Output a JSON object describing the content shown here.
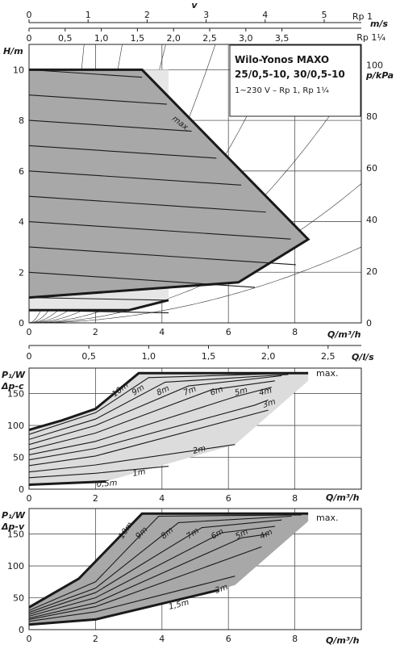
{
  "chart_data": [
    {
      "type": "line",
      "title": "Wilo-Yonos MAXO",
      "subtitle": "25/0,5-10, 30/0,5-10",
      "note": "1~230 V – Rp 1, Rp 1¼",
      "xlabel": "Q/m³/h",
      "ylabel": "H/m",
      "y2label": "p/kPa",
      "xlim": [
        0,
        10
      ],
      "ylim": [
        0,
        11
      ],
      "xticks": [
        "0",
        "2",
        "4",
        "6",
        "8"
      ],
      "yticks": [
        "0",
        "2",
        "4",
        "6",
        "8",
        "10"
      ],
      "y2ticks": [
        "0",
        "20",
        "40",
        "60",
        "80",
        "100"
      ],
      "top_axis_label": "v",
      "top_axis_unit": "m/s",
      "top_axis1_label": "Rp 1",
      "top_axis1_ticks": [
        "0",
        "1",
        "2",
        "3",
        "4",
        "5"
      ],
      "top_axis2_label": "Rp 1¼",
      "top_axis2_ticks": [
        "0",
        "0,5",
        "1,0",
        "1,5",
        "2,0",
        "2,5",
        "3,0",
        "3,5"
      ],
      "annotation": "max.",
      "grid": true,
      "envelope_max": {
        "x": [
          0,
          3.4,
          8.4,
          6.3,
          0
        ],
        "y": [
          10,
          10,
          3.3,
          1.6,
          1.0
        ]
      },
      "range_min_minus": {
        "x": [
          0,
          4.2,
          4.2,
          3.0,
          0
        ],
        "y": [
          10,
          10,
          0.9,
          0.5,
          0.5
        ]
      },
      "head_levels": [
        10,
        9,
        8,
        7,
        6,
        5,
        4,
        3,
        2,
        1,
        0.5
      ]
    },
    {
      "type": "line",
      "title": "Δp-c",
      "ylabel": "P₁/W",
      "xlabel": "Q/m³/h",
      "top_axis_label": "Q/l/s",
      "top_axis_ticks": [
        "0",
        "0,5",
        "1,0",
        "1,5",
        "2,0",
        "2,5"
      ],
      "xlim": [
        0,
        10
      ],
      "ylim": [
        0,
        190
      ],
      "xticks": [
        "0",
        "2",
        "4",
        "6",
        "8"
      ],
      "yticks": [
        "0",
        "50",
        "100",
        "150"
      ],
      "annotation": "max.",
      "series": [
        {
          "name": "10m",
          "x": [
            0,
            1,
            2,
            3.3,
            8.4
          ],
          "y": [
            93,
            108,
            126,
            182,
            182
          ]
        },
        {
          "name": "9m",
          "x": [
            0,
            2,
            3.6,
            8
          ],
          "y": [
            86,
            120,
            175,
            182
          ]
        },
        {
          "name": "8m",
          "x": [
            0,
            2,
            4.1,
            7.8
          ],
          "y": [
            78,
            110,
            168,
            180
          ]
        },
        {
          "name": "7m",
          "x": [
            0,
            2,
            4.8,
            7.6
          ],
          "y": [
            70,
            100,
            162,
            178
          ]
        },
        {
          "name": "6m",
          "x": [
            0,
            2,
            5.5,
            7.4
          ],
          "y": [
            62,
            88,
            156,
            170
          ]
        },
        {
          "name": "5m",
          "x": [
            0,
            2,
            6.2,
            7.3
          ],
          "y": [
            54,
            75,
            145,
            160
          ]
        },
        {
          "name": "4m",
          "x": [
            0,
            2,
            6.8,
            7.2
          ],
          "y": [
            46,
            64,
            132,
            140
          ]
        },
        {
          "name": "3m",
          "x": [
            0,
            2,
            7.2
          ],
          "y": [
            37,
            52,
            124
          ]
        },
        {
          "name": "2m",
          "x": [
            0,
            2,
            6.2
          ],
          "y": [
            27,
            38,
            70
          ]
        },
        {
          "name": "1m",
          "x": [
            0,
            2,
            4.2
          ],
          "y": [
            18,
            25,
            36
          ]
        },
        {
          "name": "0,5m",
          "x": [
            0,
            2.3
          ],
          "y": [
            7,
            12
          ]
        }
      ]
    },
    {
      "type": "line",
      "title": "Δp-v",
      "ylabel": "P₁/W",
      "xlabel": "Q/m³/h",
      "xlim": [
        0,
        10
      ],
      "ylim": [
        0,
        190
      ],
      "xticks": [
        "0",
        "2",
        "4",
        "6",
        "8"
      ],
      "yticks": [
        "0",
        "50",
        "100",
        "150"
      ],
      "annotation": "max.",
      "series": [
        {
          "name": "10m",
          "x": [
            0,
            1.5,
            3.4,
            8.4
          ],
          "y": [
            35,
            80,
            182,
            182
          ]
        },
        {
          "name": "9m",
          "x": [
            0,
            2,
            3.9,
            8.2
          ],
          "y": [
            30,
            75,
            178,
            180
          ]
        },
        {
          "name": "8m",
          "x": [
            0,
            2,
            4.5,
            7.9
          ],
          "y": [
            27,
            65,
            168,
            178
          ]
        },
        {
          "name": "7m",
          "x": [
            0,
            2,
            5.2,
            7.6
          ],
          "y": [
            24,
            58,
            160,
            172
          ]
        },
        {
          "name": "6m",
          "x": [
            0,
            2,
            5.8,
            7.4
          ],
          "y": [
            21,
            50,
            152,
            162
          ]
        },
        {
          "name": "5m",
          "x": [
            0,
            2,
            6.4,
            7.2
          ],
          "y": [
            18,
            42,
            144,
            150
          ]
        },
        {
          "name": "4m",
          "x": [
            0,
            2,
            7
          ],
          "y": [
            16,
            36,
            130
          ]
        },
        {
          "name": "3m",
          "x": [
            0,
            2,
            6.2
          ],
          "y": [
            13,
            28,
            84
          ]
        },
        {
          "name": "1,5m",
          "x": [
            0,
            2,
            5.7
          ],
          "y": [
            8,
            16,
            62
          ]
        }
      ]
    }
  ]
}
